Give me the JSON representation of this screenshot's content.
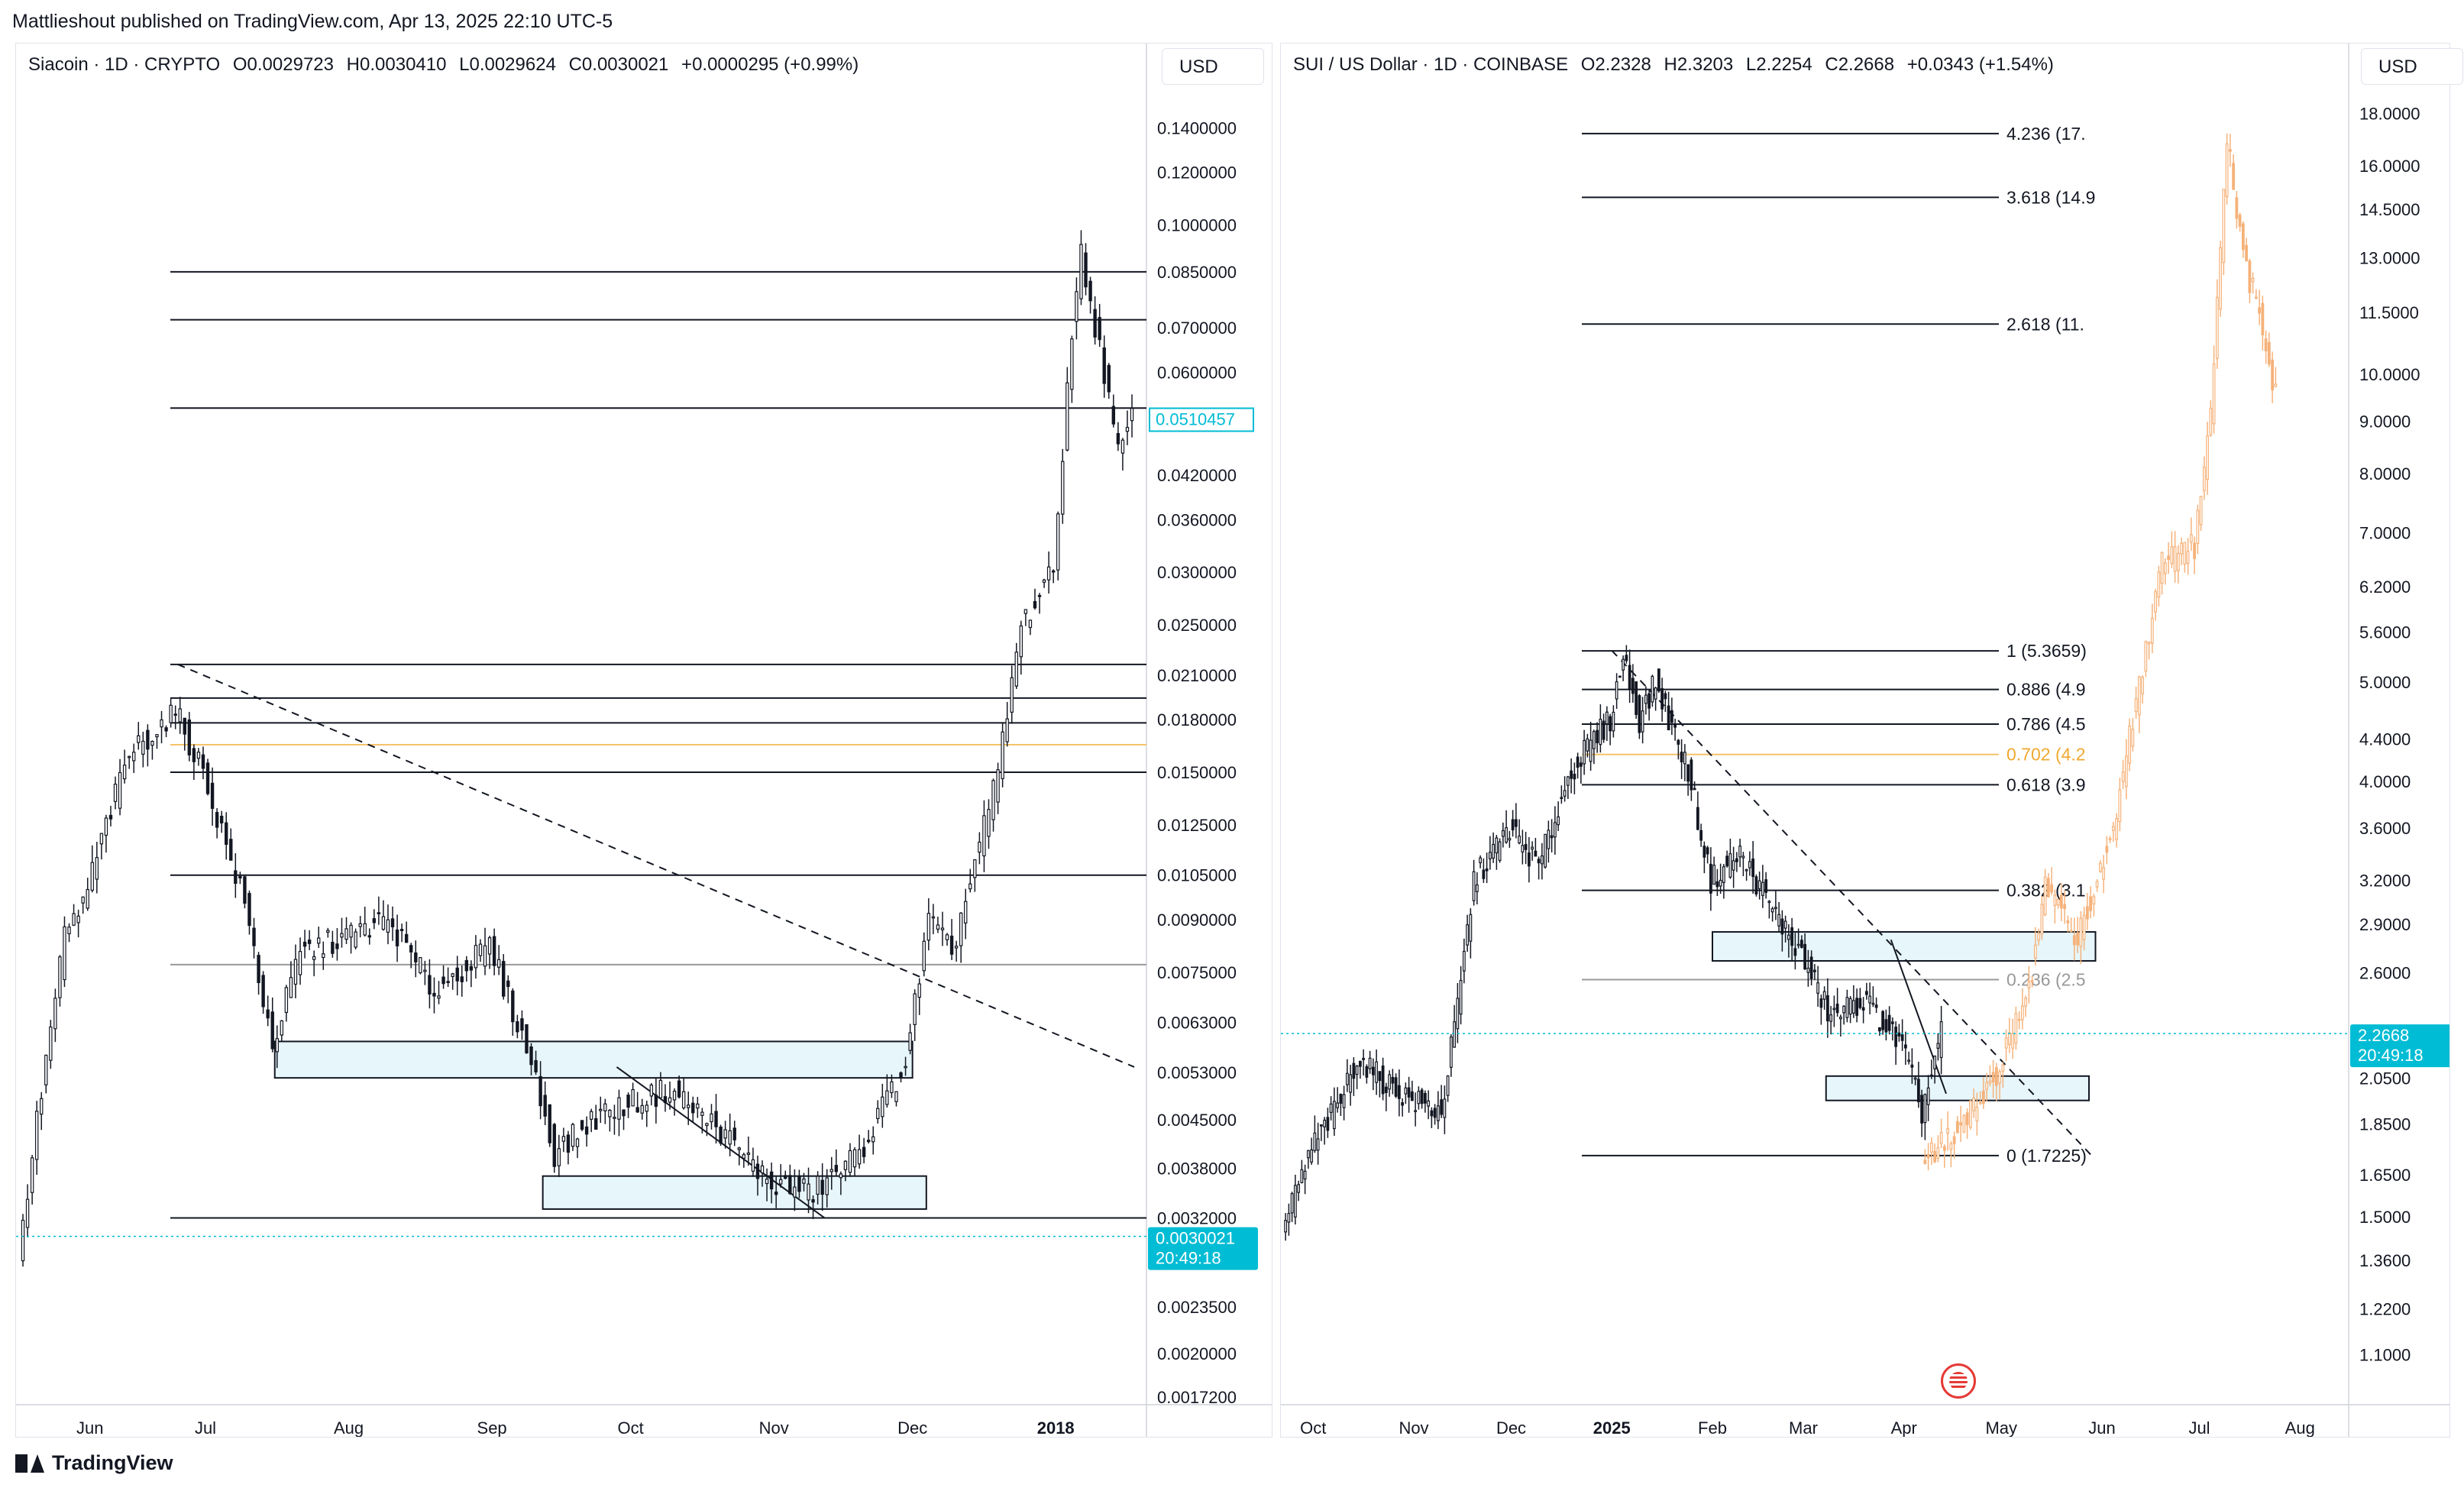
{
  "header": {
    "published_by": "Mattlieshout published on TradingView.com, Apr 13, 2025 22:10 UTC-5"
  },
  "footer": {
    "brand": "TradingView"
  },
  "colors": {
    "zone_fill": "#e6f6fa",
    "price_tag": "#00bcd4",
    "projection": "#f5b27a",
    "fib_gold": "#f5c36a",
    "line": "#131722",
    "grid_text": "#131722"
  },
  "left": {
    "legend": {
      "symbol": "Siacoin · 1D · CRYPTO",
      "open": "O0.0029723",
      "high": "H0.0030410",
      "low": "L0.0029624",
      "close": "C0.0030021",
      "change": "+0.0000295 (+0.99%)"
    },
    "currency": "USD",
    "price_label": "0.0030021",
    "price_countdown": "20:49:18",
    "highlight_label": "0.0510457"
  },
  "right": {
    "legend": {
      "symbol": "SUI / US Dollar · 1D · COINBASE",
      "open": "O2.2328",
      "high": "H2.3203",
      "low": "L2.2254",
      "close": "C2.2668",
      "change": "+0.0343 (+1.54%)"
    },
    "currency": "USD",
    "price_label": "2.2668",
    "price_countdown": "20:49:18"
  },
  "chart_data": [
    {
      "type": "candlestick",
      "symbol": "Siacoin · 1D · CRYPTO",
      "scale": "log",
      "ylim": [
        0.00172,
        0.16
      ],
      "x_ticks": [
        "Jun",
        "Jul",
        "Aug",
        "Sep",
        "Oct",
        "Nov",
        "Dec",
        "2018"
      ],
      "y_ticks": [
        "0.1400000",
        "0.1200000",
        "0.1000000",
        "0.0850000",
        "0.0700000",
        "0.0600000",
        "0.0420000",
        "0.0360000",
        "0.0300000",
        "0.0250000",
        "0.0210000",
        "0.0180000",
        "0.0150000",
        "0.0125000",
        "0.0105000",
        "0.0090000",
        "0.0075000",
        "0.0063000",
        "0.0053000",
        "0.0045000",
        "0.0038000",
        "0.0032000",
        "0.0023500",
        "0.0020000",
        "0.0017200"
      ],
      "horizontal_levels": [
        0.085,
        0.072,
        0.053,
        0.0218,
        0.0194,
        0.0178,
        0.0165,
        0.015,
        0.0105,
        0.0077,
        0.0032
      ],
      "price_path": [
        {
          "x": "May 22",
          "y": 0.0027
        },
        {
          "x": "May 25",
          "y": 0.004
        },
        {
          "x": "Jun 1",
          "y": 0.0085
        },
        {
          "x": "Jun 5",
          "y": 0.0095
        },
        {
          "x": "Jun 10",
          "y": 0.0125
        },
        {
          "x": "Jun 15",
          "y": 0.016
        },
        {
          "x": "Jun 25",
          "y": 0.0185
        },
        {
          "x": "Jul 1",
          "y": 0.015
        },
        {
          "x": "Jul 10",
          "y": 0.0095
        },
        {
          "x": "Jul 16",
          "y": 0.0058
        },
        {
          "x": "Jul 22",
          "y": 0.008
        },
        {
          "x": "Aug 1",
          "y": 0.0085
        },
        {
          "x": "Aug 10",
          "y": 0.009
        },
        {
          "x": "Aug 20",
          "y": 0.007
        },
        {
          "x": "Sep 1",
          "y": 0.0082
        },
        {
          "x": "Sep 10",
          "y": 0.0055
        },
        {
          "x": "Sep 15",
          "y": 0.004
        },
        {
          "x": "Sep 25",
          "y": 0.0046
        },
        {
          "x": "Oct 10",
          "y": 0.005
        },
        {
          "x": "Oct 20",
          "y": 0.0044
        },
        {
          "x": "Nov 1",
          "y": 0.0036
        },
        {
          "x": "Nov 10",
          "y": 0.0035
        },
        {
          "x": "Nov 20",
          "y": 0.004
        },
        {
          "x": "Nov 30",
          "y": 0.0055
        },
        {
          "x": "Dec 5",
          "y": 0.009
        },
        {
          "x": "Dec 10",
          "y": 0.008
        },
        {
          "x": "Dec 20",
          "y": 0.015
        },
        {
          "x": "Dec 25",
          "y": 0.025
        },
        {
          "x": "Jan 1",
          "y": 0.03
        },
        {
          "x": "Jan 5",
          "y": 0.07
        },
        {
          "x": "Jan 7",
          "y": 0.09
        },
        {
          "x": "Jan 12",
          "y": 0.06
        },
        {
          "x": "Jan 15",
          "y": 0.045
        },
        {
          "x": "Jan 18",
          "y": 0.051
        }
      ],
      "zones": [
        {
          "from": "Jul 16",
          "to": "Dec 1",
          "top": 0.0059,
          "bottom": 0.0052
        },
        {
          "from": "Sep 12",
          "to": "Dec 4",
          "top": 0.0037,
          "bottom": 0.0033
        }
      ],
      "trendlines": [
        {
          "from": {
            "x": "Jun 25",
            "y": 0.0218
          },
          "to": {
            "x": "Jan 18",
            "y": 0.0054
          },
          "style": "dashed"
        },
        {
          "from": {
            "x": "Sep 28",
            "y": 0.0054
          },
          "to": {
            "x": "Nov 12",
            "y": 0.0032
          },
          "style": "solid"
        }
      ],
      "last_price": 0.0030021
    },
    {
      "type": "candlestick",
      "symbol": "SUI / US Dollar · 1D · COINBASE",
      "scale": "log",
      "ylim": [
        1.0,
        19.0
      ],
      "x_ticks": [
        "Oct",
        "Nov",
        "Dec",
        "2025",
        "Feb",
        "Mar",
        "Apr",
        "May",
        "Jun",
        "Jul",
        "Aug"
      ],
      "y_ticks": [
        "18.0000",
        "16.0000",
        "14.5000",
        "13.0000",
        "11.5000",
        "10.0000",
        "9.0000",
        "8.0000",
        "7.0000",
        "6.2000",
        "5.6000",
        "5.0000",
        "4.4000",
        "4.0000",
        "3.6000",
        "3.2000",
        "2.9000",
        "2.6000",
        "2.0500",
        "1.8500",
        "1.6500",
        "1.5000",
        "1.3600",
        "1.2200",
        "1.1000"
      ],
      "fib_levels": [
        {
          "label": "4.236 (17.",
          "value": 17.2
        },
        {
          "label": "3.618 (14.9",
          "value": 14.9
        },
        {
          "label": "2.618 (11.",
          "value": 11.2
        },
        {
          "label": "1 (5.3659)",
          "value": 5.3659
        },
        {
          "label": "0.886 (4.9",
          "value": 4.92
        },
        {
          "label": "0.786 (4.5",
          "value": 4.55
        },
        {
          "label": "0.702 (4.2",
          "value": 4.25,
          "color": "gold"
        },
        {
          "label": "0.618 (3.9",
          "value": 3.97
        },
        {
          "label": "0.382 (3.1",
          "value": 3.13
        },
        {
          "label": "0.236 (2.5",
          "value": 2.56,
          "color": "gray"
        },
        {
          "label": "0 (1.7225)",
          "value": 1.7225
        }
      ],
      "price_path": [
        {
          "x": "Sep 22",
          "y": 1.45
        },
        {
          "x": "Oct 1",
          "y": 1.75
        },
        {
          "x": "Oct 10",
          "y": 1.95
        },
        {
          "x": "Oct 15",
          "y": 2.15
        },
        {
          "x": "Oct 22",
          "y": 2.05
        },
        {
          "x": "Nov 1",
          "y": 1.95
        },
        {
          "x": "Nov 10",
          "y": 1.9
        },
        {
          "x": "Nov 15",
          "y": 2.4
        },
        {
          "x": "Nov 20",
          "y": 3.2
        },
        {
          "x": "Dec 1",
          "y": 3.6
        },
        {
          "x": "Dec 10",
          "y": 3.3
        },
        {
          "x": "Dec 20",
          "y": 4.1
        },
        {
          "x": "Jan 1",
          "y": 4.6
        },
        {
          "x": "Jan 5",
          "y": 5.3
        },
        {
          "x": "Jan 10",
          "y": 4.6
        },
        {
          "x": "Jan 15",
          "y": 5.0
        },
        {
          "x": "Jan 25",
          "y": 4.1
        },
        {
          "x": "Feb 1",
          "y": 3.2
        },
        {
          "x": "Feb 10",
          "y": 3.4
        },
        {
          "x": "Feb 20",
          "y": 3.0
        },
        {
          "x": "Mar 1",
          "y": 2.7
        },
        {
          "x": "Mar 10",
          "y": 2.35
        },
        {
          "x": "Mar 20",
          "y": 2.45
        },
        {
          "x": "Apr 1",
          "y": 2.2
        },
        {
          "x": "Apr 7",
          "y": 1.9
        },
        {
          "x": "Apr 13",
          "y": 2.27
        }
      ],
      "projection_path": [
        {
          "x": "Apr 7",
          "y": 1.7
        },
        {
          "x": "Apr 20",
          "y": 1.85
        },
        {
          "x": "May 1",
          "y": 2.1
        },
        {
          "x": "May 10",
          "y": 2.5
        },
        {
          "x": "May 15",
          "y": 3.2
        },
        {
          "x": "May 25",
          "y": 2.8
        },
        {
          "x": "Jun 5",
          "y": 3.6
        },
        {
          "x": "Jun 10",
          "y": 4.4
        },
        {
          "x": "Jun 20",
          "y": 6.5
        },
        {
          "x": "Jun 30",
          "y": 6.8
        },
        {
          "x": "Jul 5",
          "y": 9.0
        },
        {
          "x": "Jul 10",
          "y": 17.0
        },
        {
          "x": "Jul 15",
          "y": 13.0
        },
        {
          "x": "Jul 20",
          "y": 11.5
        },
        {
          "x": "Jul 25",
          "y": 9.5
        }
      ],
      "zones": [
        {
          "from": "Feb 1",
          "to": "May 30",
          "top": 2.85,
          "bottom": 2.67
        },
        {
          "from": "Mar 8",
          "to": "May 28",
          "top": 2.06,
          "bottom": 1.95
        }
      ],
      "trendlines": [
        {
          "from": {
            "x": "Jan 1",
            "y": 5.37
          },
          "to": {
            "x": "May 29",
            "y": 1.72
          },
          "style": "dashed"
        },
        {
          "from": {
            "x": "Mar 28",
            "y": 2.8
          },
          "to": {
            "x": "Apr 14",
            "y": 1.98
          },
          "style": "solid"
        }
      ],
      "last_price": 2.2668
    }
  ]
}
